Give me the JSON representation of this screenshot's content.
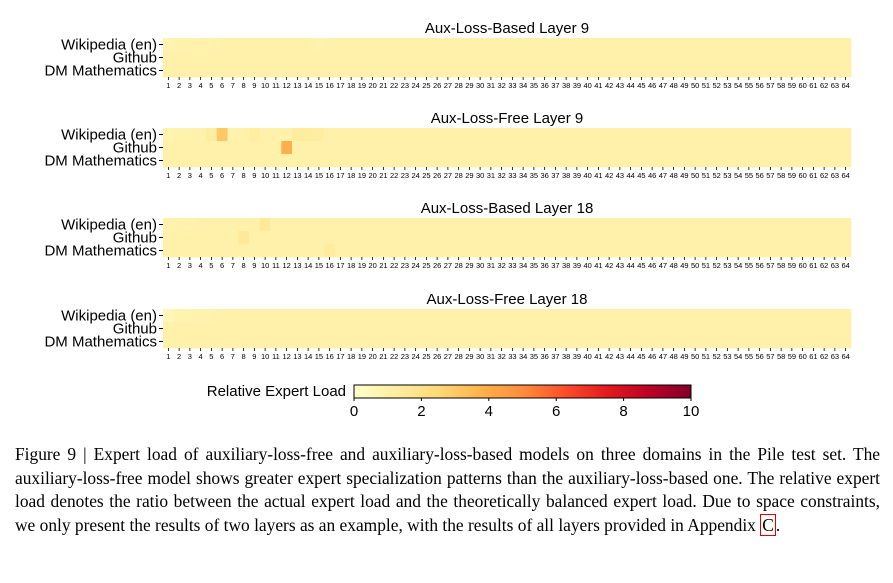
{
  "chart_data": [
    {
      "type": "heatmap",
      "title": "Aux-Loss-Based Layer 9",
      "rows": [
        "Wikipedia (en)",
        "Github",
        "DM Mathematics"
      ],
      "columns": [
        "1",
        "2",
        "3",
        "4",
        "5",
        "6",
        "7",
        "8",
        "9",
        "10",
        "11",
        "12",
        "13",
        "14",
        "15",
        "16",
        "17",
        "18",
        "19",
        "20",
        "21",
        "22",
        "23",
        "24",
        "25",
        "26",
        "27",
        "28",
        "29",
        "30",
        "31",
        "32",
        "33",
        "34",
        "35",
        "36",
        "37",
        "38",
        "39",
        "40",
        "41",
        "42",
        "43",
        "44",
        "45",
        "46",
        "47",
        "48",
        "49",
        "50",
        "51",
        "52",
        "53",
        "54",
        "55",
        "56",
        "57",
        "58",
        "59",
        "60",
        "61",
        "62",
        "63",
        "64"
      ],
      "values": [
        [
          0.8,
          0.9,
          0.9,
          1.0,
          0.9,
          1.0,
          1.0,
          1.0,
          1.0,
          1.0,
          1.0,
          1.0,
          1.0,
          1.0,
          0.9,
          1.0,
          1.0,
          1.0,
          1.0,
          1.0,
          1.0,
          1.0,
          1.0,
          1.0,
          1.0,
          1.0,
          1.0,
          1.0,
          1.0,
          1.0,
          1.0,
          1.0,
          1.0,
          1.0,
          1.0,
          1.0,
          1.0,
          1.0,
          1.0,
          1.0,
          1.0,
          1.0,
          1.0,
          1.0,
          1.0,
          1.0,
          1.0,
          1.0,
          1.0,
          1.0,
          1.0,
          1.0,
          1.0,
          1.0,
          1.0,
          1.0,
          1.0,
          1.0,
          1.0,
          1.0,
          1.0,
          1.0,
          1.0,
          1.0
        ],
        [
          1.0,
          1.0,
          1.0,
          1.0,
          1.0,
          1.0,
          1.0,
          1.0,
          1.0,
          1.0,
          1.0,
          1.0,
          1.0,
          1.0,
          1.0,
          1.0,
          1.0,
          1.0,
          1.0,
          1.0,
          1.0,
          1.0,
          1.0,
          1.0,
          1.0,
          1.0,
          1.0,
          1.0,
          1.0,
          1.0,
          1.0,
          1.0,
          1.0,
          1.0,
          1.0,
          1.0,
          1.0,
          1.0,
          1.0,
          1.0,
          1.0,
          1.0,
          1.0,
          1.0,
          1.0,
          1.0,
          1.0,
          1.0,
          1.0,
          1.0,
          1.0,
          1.0,
          1.0,
          1.0,
          1.0,
          1.0,
          1.0,
          1.0,
          1.0,
          1.0,
          1.0,
          1.0,
          1.0,
          1.0
        ],
        [
          1.0,
          1.0,
          1.0,
          1.0,
          1.0,
          1.0,
          1.0,
          1.0,
          1.0,
          1.0,
          1.0,
          1.0,
          1.0,
          1.0,
          1.0,
          1.0,
          1.0,
          1.0,
          1.0,
          1.0,
          1.0,
          1.0,
          1.0,
          1.0,
          1.0,
          1.0,
          1.0,
          1.0,
          1.0,
          1.0,
          1.0,
          1.0,
          1.0,
          1.0,
          1.0,
          1.0,
          1.0,
          1.0,
          1.0,
          1.0,
          1.0,
          1.0,
          1.0,
          1.0,
          1.0,
          1.0,
          1.0,
          1.0,
          1.0,
          1.0,
          1.0,
          1.0,
          1.0,
          1.0,
          1.0,
          1.0,
          1.0,
          1.0,
          1.0,
          1.0,
          1.0,
          1.0,
          1.0,
          1.0
        ]
      ],
      "cmap": [
        "#ffffcc",
        "#ffeda0",
        "#fed976",
        "#feb24c",
        "#fd8d3c",
        "#fc4e2a",
        "#e31a1c",
        "#bd0026",
        "#800026"
      ],
      "vmin": 0,
      "vmax": 10
    },
    {
      "type": "heatmap",
      "title": "Aux-Loss-Free Layer 9",
      "rows": [
        "Wikipedia (en)",
        "Github",
        "DM Mathematics"
      ],
      "columns": [
        "1",
        "2",
        "3",
        "4",
        "5",
        "6",
        "7",
        "8",
        "9",
        "10",
        "11",
        "12",
        "13",
        "14",
        "15",
        "16",
        "17",
        "18",
        "19",
        "20",
        "21",
        "22",
        "23",
        "24",
        "25",
        "26",
        "27",
        "28",
        "29",
        "30",
        "31",
        "32",
        "33",
        "34",
        "35",
        "36",
        "37",
        "38",
        "39",
        "40",
        "41",
        "42",
        "43",
        "44",
        "45",
        "46",
        "47",
        "48",
        "49",
        "50",
        "51",
        "52",
        "53",
        "54",
        "55",
        "56",
        "57",
        "58",
        "59",
        "60",
        "61",
        "62",
        "63",
        "64"
      ],
      "values": [
        [
          0.8,
          0.9,
          0.9,
          0.9,
          1.2,
          3.0,
          0.9,
          1.0,
          1.2,
          1.0,
          1.0,
          1.0,
          1.3,
          1.3,
          1.2,
          1.0,
          1.0,
          1.0,
          1.0,
          1.0,
          1.0,
          1.0,
          1.0,
          1.0,
          1.0,
          1.0,
          1.0,
          1.0,
          1.0,
          1.0,
          1.0,
          1.0,
          1.0,
          1.0,
          1.0,
          1.0,
          1.0,
          1.0,
          1.0,
          1.0,
          1.0,
          1.0,
          1.0,
          1.0,
          1.0,
          1.0,
          1.0,
          1.0,
          1.0,
          1.0,
          1.0,
          1.0,
          1.0,
          1.0,
          1.0,
          1.0,
          1.0,
          1.0,
          1.0,
          1.0,
          1.0,
          1.0,
          1.0,
          1.0
        ],
        [
          1.0,
          1.0,
          1.0,
          1.0,
          1.0,
          1.0,
          1.0,
          1.0,
          1.0,
          1.0,
          1.0,
          3.8,
          1.0,
          1.0,
          1.0,
          1.0,
          1.0,
          1.0,
          1.0,
          1.0,
          1.0,
          1.0,
          1.0,
          1.0,
          1.0,
          1.0,
          1.0,
          1.0,
          1.0,
          1.0,
          1.0,
          1.0,
          1.0,
          1.0,
          1.0,
          1.0,
          1.0,
          1.0,
          1.0,
          1.0,
          1.0,
          1.0,
          1.0,
          1.0,
          1.0,
          1.0,
          1.0,
          1.0,
          1.0,
          1.0,
          1.0,
          1.0,
          1.0,
          1.0,
          1.0,
          1.0,
          1.0,
          1.0,
          1.0,
          1.0,
          1.0,
          1.0,
          1.0,
          1.0
        ],
        [
          1.0,
          1.0,
          1.0,
          1.0,
          1.0,
          1.0,
          1.0,
          1.0,
          1.0,
          1.0,
          1.0,
          1.0,
          1.0,
          1.0,
          1.0,
          1.0,
          1.0,
          1.0,
          1.0,
          1.0,
          1.0,
          1.0,
          1.0,
          1.0,
          1.0,
          1.0,
          1.0,
          1.0,
          1.0,
          1.0,
          1.0,
          1.0,
          1.0,
          1.0,
          1.0,
          1.0,
          1.0,
          1.0,
          1.0,
          1.0,
          1.0,
          1.0,
          1.0,
          1.0,
          1.0,
          1.0,
          1.0,
          1.0,
          1.0,
          1.0,
          1.0,
          1.0,
          1.0,
          1.0,
          1.0,
          1.0,
          1.0,
          1.0,
          1.0,
          1.0,
          1.0,
          1.0,
          1.0,
          1.0
        ]
      ],
      "cmap": [
        "#ffffcc",
        "#ffeda0",
        "#fed976",
        "#feb24c",
        "#fd8d3c",
        "#fc4e2a",
        "#e31a1c",
        "#bd0026",
        "#800026"
      ],
      "vmin": 0,
      "vmax": 10
    },
    {
      "type": "heatmap",
      "title": "Aux-Loss-Based Layer 18",
      "rows": [
        "Wikipedia (en)",
        "Github",
        "DM Mathematics"
      ],
      "columns": [
        "1",
        "2",
        "3",
        "4",
        "5",
        "6",
        "7",
        "8",
        "9",
        "10",
        "11",
        "12",
        "13",
        "14",
        "15",
        "16",
        "17",
        "18",
        "19",
        "20",
        "21",
        "22",
        "23",
        "24",
        "25",
        "26",
        "27",
        "28",
        "29",
        "30",
        "31",
        "32",
        "33",
        "34",
        "35",
        "36",
        "37",
        "38",
        "39",
        "40",
        "41",
        "42",
        "43",
        "44",
        "45",
        "46",
        "47",
        "48",
        "49",
        "50",
        "51",
        "52",
        "53",
        "54",
        "55",
        "56",
        "57",
        "58",
        "59",
        "60",
        "61",
        "62",
        "63",
        "64"
      ],
      "values": [
        [
          0.9,
          0.9,
          0.9,
          1.0,
          1.0,
          1.0,
          1.0,
          1.0,
          1.0,
          1.5,
          1.0,
          1.0,
          1.0,
          1.0,
          1.0,
          1.0,
          1.0,
          1.0,
          1.0,
          1.0,
          1.0,
          1.0,
          1.0,
          1.0,
          1.0,
          1.0,
          1.0,
          1.0,
          1.0,
          1.0,
          1.0,
          1.0,
          1.0,
          1.0,
          1.0,
          1.0,
          1.0,
          1.0,
          1.0,
          1.0,
          1.0,
          1.0,
          1.0,
          1.0,
          1.0,
          1.0,
          1.0,
          1.0,
          1.0,
          1.0,
          1.0,
          1.0,
          1.0,
          1.0,
          1.0,
          1.0,
          1.0,
          1.0,
          1.0,
          1.0,
          1.0,
          1.0,
          1.0,
          1.0
        ],
        [
          1.0,
          1.0,
          1.0,
          1.0,
          1.0,
          1.0,
          1.0,
          1.5,
          1.0,
          1.0,
          1.0,
          1.0,
          1.0,
          1.0,
          1.0,
          1.0,
          1.0,
          1.0,
          1.0,
          1.0,
          1.0,
          1.0,
          1.0,
          1.0,
          1.0,
          1.0,
          1.0,
          1.0,
          1.0,
          1.0,
          1.0,
          1.0,
          1.0,
          1.0,
          1.0,
          1.0,
          1.0,
          1.0,
          1.0,
          1.0,
          1.0,
          1.0,
          1.0,
          1.0,
          1.0,
          1.0,
          1.0,
          1.0,
          1.0,
          1.0,
          1.0,
          1.0,
          1.0,
          1.0,
          1.0,
          1.0,
          1.0,
          1.0,
          1.0,
          1.0,
          1.0,
          1.0,
          1.0,
          1.0
        ],
        [
          1.0,
          1.0,
          1.0,
          1.0,
          1.0,
          1.0,
          1.0,
          1.0,
          1.0,
          1.0,
          1.0,
          1.0,
          1.0,
          1.0,
          1.0,
          1.3,
          1.0,
          1.0,
          1.0,
          1.0,
          1.0,
          1.0,
          1.0,
          1.0,
          1.0,
          1.0,
          1.0,
          1.0,
          1.0,
          1.0,
          1.0,
          1.0,
          1.0,
          1.0,
          1.0,
          1.0,
          1.0,
          1.0,
          1.0,
          1.0,
          1.0,
          1.0,
          1.0,
          1.0,
          1.0,
          1.0,
          1.0,
          1.0,
          1.0,
          1.0,
          1.0,
          1.0,
          1.0,
          1.0,
          1.0,
          1.0,
          1.0,
          1.0,
          1.0,
          1.0,
          1.0,
          1.0,
          1.0,
          1.0
        ]
      ],
      "cmap": [
        "#ffffcc",
        "#ffeda0",
        "#fed976",
        "#feb24c",
        "#fd8d3c",
        "#fc4e2a",
        "#e31a1c",
        "#bd0026",
        "#800026"
      ],
      "vmin": 0,
      "vmax": 10
    },
    {
      "type": "heatmap",
      "title": "Aux-Loss-Free Layer 18",
      "rows": [
        "Wikipedia (en)",
        "Github",
        "DM Mathematics"
      ],
      "columns": [
        "1",
        "2",
        "3",
        "4",
        "5",
        "6",
        "7",
        "8",
        "9",
        "10",
        "11",
        "12",
        "13",
        "14",
        "15",
        "16",
        "17",
        "18",
        "19",
        "20",
        "21",
        "22",
        "23",
        "24",
        "25",
        "26",
        "27",
        "28",
        "29",
        "30",
        "31",
        "32",
        "33",
        "34",
        "35",
        "36",
        "37",
        "38",
        "39",
        "40",
        "41",
        "42",
        "43",
        "44",
        "45",
        "46",
        "47",
        "48",
        "49",
        "50",
        "51",
        "52",
        "53",
        "54",
        "55",
        "56",
        "57",
        "58",
        "59",
        "60",
        "61",
        "62",
        "63",
        "64"
      ],
      "values": [
        [
          0.6,
          0.8,
          0.8,
          0.9,
          0.9,
          1.0,
          1.0,
          1.0,
          1.0,
          1.0,
          1.0,
          1.0,
          1.0,
          1.0,
          1.0,
          1.0,
          1.0,
          1.0,
          1.0,
          1.0,
          1.0,
          1.0,
          1.0,
          1.0,
          1.0,
          1.0,
          1.0,
          1.0,
          1.0,
          1.0,
          1.0,
          1.0,
          1.0,
          1.0,
          1.0,
          1.0,
          1.0,
          1.0,
          1.0,
          1.0,
          1.0,
          1.0,
          1.0,
          1.0,
          1.0,
          1.0,
          1.0,
          1.0,
          1.0,
          1.0,
          1.0,
          1.0,
          1.0,
          1.0,
          1.0,
          1.0,
          1.0,
          1.0,
          1.0,
          1.0,
          1.0,
          1.0,
          1.0,
          1.0
        ],
        [
          1.0,
          1.0,
          1.0,
          1.0,
          1.0,
          1.0,
          1.0,
          1.0,
          1.0,
          1.0,
          1.0,
          1.0,
          1.0,
          1.0,
          1.0,
          1.0,
          1.0,
          1.0,
          1.0,
          1.0,
          1.0,
          1.0,
          1.0,
          1.0,
          1.0,
          1.0,
          1.0,
          1.0,
          1.0,
          1.0,
          1.0,
          1.0,
          1.0,
          1.0,
          1.0,
          1.0,
          1.0,
          1.0,
          1.0,
          1.0,
          1.0,
          1.0,
          1.0,
          1.0,
          1.0,
          1.0,
          1.0,
          1.0,
          1.0,
          1.0,
          1.0,
          1.0,
          1.0,
          1.0,
          1.0,
          1.0,
          1.0,
          1.0,
          1.0,
          1.0,
          1.0,
          1.0,
          1.0,
          1.0
        ],
        [
          1.0,
          1.0,
          1.0,
          1.0,
          1.0,
          1.0,
          1.0,
          1.0,
          1.0,
          1.0,
          1.0,
          1.0,
          1.0,
          1.0,
          1.0,
          1.0,
          1.0,
          1.0,
          1.0,
          1.0,
          1.0,
          1.0,
          1.0,
          1.0,
          1.0,
          1.0,
          1.0,
          1.0,
          1.0,
          1.0,
          1.0,
          1.0,
          1.0,
          1.0,
          1.0,
          1.0,
          1.0,
          1.0,
          1.0,
          1.0,
          1.0,
          1.0,
          1.0,
          1.0,
          1.0,
          1.0,
          1.0,
          1.0,
          1.0,
          1.0,
          1.0,
          1.0,
          1.0,
          1.0,
          1.0,
          1.0,
          1.0,
          1.0,
          1.0,
          1.0,
          1.0,
          1.0,
          1.0,
          1.0
        ]
      ],
      "cmap": [
        "#ffffcc",
        "#ffeda0",
        "#fed976",
        "#feb24c",
        "#fd8d3c",
        "#fc4e2a",
        "#e31a1c",
        "#bd0026",
        "#800026"
      ],
      "vmin": 0,
      "vmax": 10
    }
  ],
  "colorbar": {
    "label": "Relative Expert Load",
    "ticks": [
      "0",
      "2",
      "4",
      "6",
      "8",
      "10"
    ]
  },
  "caption": {
    "text": "Figure 9 | Expert load of auxiliary-loss-free and auxiliary-loss-based models on three domains in the Pile test set. The auxiliary-loss-free model shows greater expert specialization patterns than the auxiliary-loss-based one. The relative expert load denotes the ratio between the actual expert load and the theoretically balanced expert load. Due to space constraints, we only present the results of two layers as an example, with the results of all layers provided in Appendix ",
    "ref": "C",
    "end": "."
  }
}
